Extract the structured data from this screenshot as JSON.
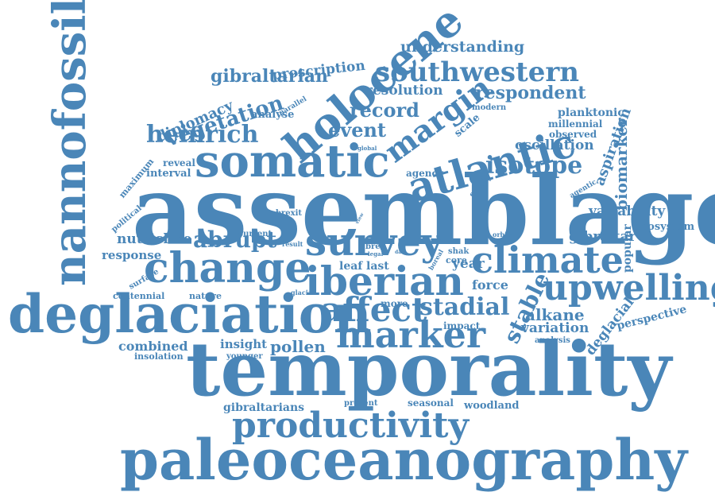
{
  "color": "#4a86b8",
  "words": [
    "assemblage",
    "temporality",
    "paleoceanography",
    "deglaciation",
    "nannofossil",
    "holocene",
    "somatic",
    "atlantic",
    "survey",
    "change",
    "iberian",
    "climate",
    "marker",
    "upwelling",
    "productivity",
    "affect",
    "margin",
    "southwestern",
    "heinrich",
    "isotope",
    "stadial",
    "vegetation",
    "gibraltarian",
    "record",
    "event",
    "abrupt",
    "nutricline",
    "pollen",
    "respondent",
    "resolution",
    "understanding",
    "proscription",
    "diplomacy",
    "analyse",
    "stable",
    "alkane",
    "variation",
    "oscillation",
    "variability",
    "gibraltar",
    "biomarker",
    "aspiration",
    "planktonic",
    "millennial",
    "observed",
    "perspective",
    "deglacial",
    "ecosystem",
    "popular",
    "force",
    "impact",
    "insight",
    "combined",
    "centennial",
    "nature",
    "response",
    "year",
    "leaf",
    "last",
    "woodland",
    "seasonal",
    "present",
    "gibraltarians",
    "insolation",
    "younger",
    "more",
    "interval",
    "reveal",
    "maximum",
    "political",
    "surface",
    "current",
    "result",
    "brexit",
    "agency",
    "study",
    "agentic",
    "scale",
    "modern",
    "global",
    "parallel",
    "core",
    "shak",
    "brex",
    "legal",
    "data",
    "boreal",
    "orbital",
    "glacial",
    "analysis",
    "view",
    "ais"
  ]
}
